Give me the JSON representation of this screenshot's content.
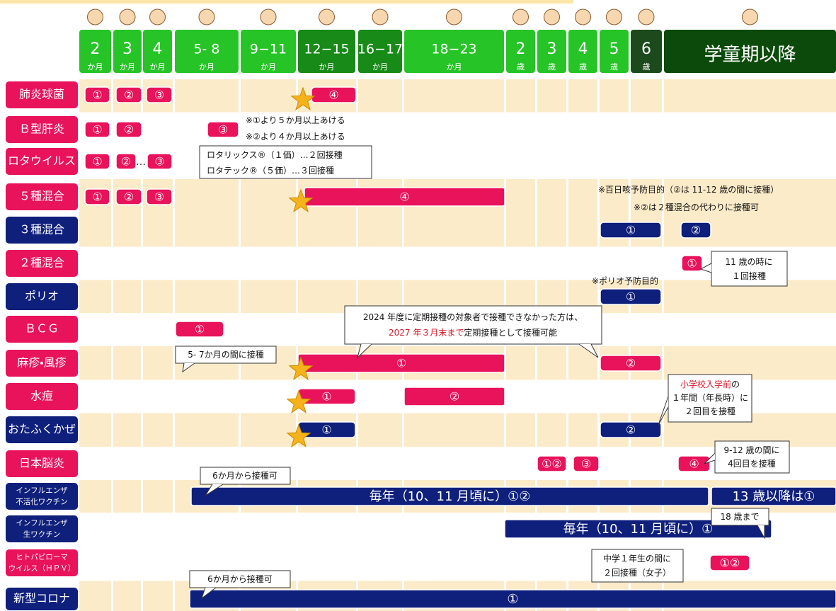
{
  "header": {
    "columns": [
      {
        "top": "2",
        "bottom": "か月"
      },
      {
        "top": "3",
        "bottom": "か月"
      },
      {
        "top": "4",
        "bottom": "か月"
      },
      {
        "top": "5- 8",
        "bottom": "か月"
      },
      {
        "top": "9−11",
        "bottom": "か月"
      },
      {
        "top": "12−15",
        "bottom": "か月"
      },
      {
        "top": "16−17",
        "bottom": "か月"
      },
      {
        "top": "18−23",
        "bottom": "か月"
      },
      {
        "top": "2",
        "bottom": "歳"
      },
      {
        "top": "3",
        "bottom": "歳"
      },
      {
        "top": "4",
        "bottom": "歳"
      },
      {
        "top": "5",
        "bottom": "歳"
      },
      {
        "top": "6",
        "bottom": "歳"
      },
      {
        "top": "学童期以降"
      }
    ]
  },
  "rows": [
    {
      "label": [
        "肺炎球菌"
      ],
      "color": "#e8135a",
      "doses": [
        "①",
        "②",
        "③",
        "④"
      ]
    },
    {
      "label": [
        "Ｂ型肝炎"
      ],
      "color": "#e8135a",
      "doses": [
        "①",
        "②",
        "③"
      ]
    },
    {
      "label": [
        "ロタウイルス"
      ],
      "color": "#e8135a",
      "doses": [
        "①",
        "②",
        "③"
      ]
    },
    {
      "label": [
        "５種混合"
      ],
      "color": "#e8135a",
      "doses": [
        "①",
        "②",
        "③",
        "④"
      ]
    },
    {
      "label": [
        "３種混合"
      ],
      "color": "#0f1f7c",
      "doses": [
        "①",
        "②"
      ]
    },
    {
      "label": [
        "２種混合"
      ],
      "color": "#e8135a",
      "doses": [
        "①"
      ]
    },
    {
      "label": [
        "ポリオ"
      ],
      "color": "#0f1f7c",
      "doses": [
        "①"
      ]
    },
    {
      "label": [
        "ＢＣＧ"
      ],
      "color": "#e8135a",
      "doses": [
        "①"
      ]
    },
    {
      "label": [
        "麻疹・風疹"
      ],
      "color": "#e8135a",
      "doses": [
        "①",
        "②"
      ]
    },
    {
      "label": [
        "水痘"
      ],
      "color": "#e8135a",
      "doses": [
        "①",
        "②"
      ]
    },
    {
      "label": [
        "おたふくかぜ"
      ],
      "color": "#0f1f7c",
      "doses": [
        "①",
        "②"
      ]
    },
    {
      "label": [
        "日本脳炎"
      ],
      "color": "#e8135a",
      "doses": [
        "①②",
        "③",
        "④"
      ]
    },
    {
      "label": [
        "インフルエンザ",
        "不活化ワクチン"
      ],
      "color": "#0f1f7c",
      "doses": [
        "毎年（10、11 月頃に）①②",
        "13 歳以降は①"
      ]
    },
    {
      "label": [
        "インフルエンザ",
        "生ワクチン"
      ],
      "color": "#0f1f7c",
      "doses": [
        "毎年（10、11 月頃に）①"
      ]
    },
    {
      "label": [
        "ヒトパピローマ",
        "ウイルス（ＨＰＶ）"
      ],
      "color": "#e8135a",
      "doses": [
        "①②"
      ]
    },
    {
      "label": [
        "新型コロナ"
      ],
      "color": "#0f1f7c",
      "doses": [
        "①"
      ]
    }
  ],
  "notes": [
    {
      "lines": [
        [
          "※①より５か月以上あける"
        ],
        [
          "※②より４か月以上あける"
        ]
      ]
    },
    {
      "lines": [
        [
          "ロタリックス®（１価）…２回接種"
        ],
        [
          "ロタテック®（５価）…３回接種"
        ]
      ]
    },
    {
      "lines": [
        [
          "※百日咳予防目的（②は 11-12 歳の間に接種）"
        ]
      ]
    },
    {
      "lines": [
        [
          "※②は２種混合の代わりに接種可"
        ]
      ]
    },
    {
      "lines": [
        [
          "11 歳の時に"
        ],
        [
          "１回接種"
        ]
      ]
    },
    {
      "lines": [
        [
          "※ポリオ予防目的"
        ]
      ]
    },
    {
      "lines": [
        [
          "2024 年度に定期接種の対象者で接種できなかった方は、"
        ],
        [
          "2027 年３月末まで",
          "定期接種として接種可能"
        ]
      ]
    },
    {
      "lines": [
        [
          "5- 7か月の間に接種"
        ]
      ]
    },
    {
      "lines": [
        [
          "小学校入学前",
          "の"
        ],
        [
          "１年間（年長時）に"
        ],
        [
          "２回目を接種"
        ]
      ]
    },
    {
      "lines": [
        [
          "9-12 歳の間に"
        ],
        [
          "4回目を接種"
        ]
      ]
    },
    {
      "lines": [
        [
          "6か月から接種可"
        ]
      ]
    },
    {
      "lines": [
        [
          "18 歳まで"
        ]
      ]
    },
    {
      "lines": [
        [
          "中学１年生の間に"
        ],
        [
          "２回接種（女子）"
        ]
      ]
    },
    {
      "lines": [
        [
          "6か月から接種可"
        ]
      ]
    }
  ]
}
